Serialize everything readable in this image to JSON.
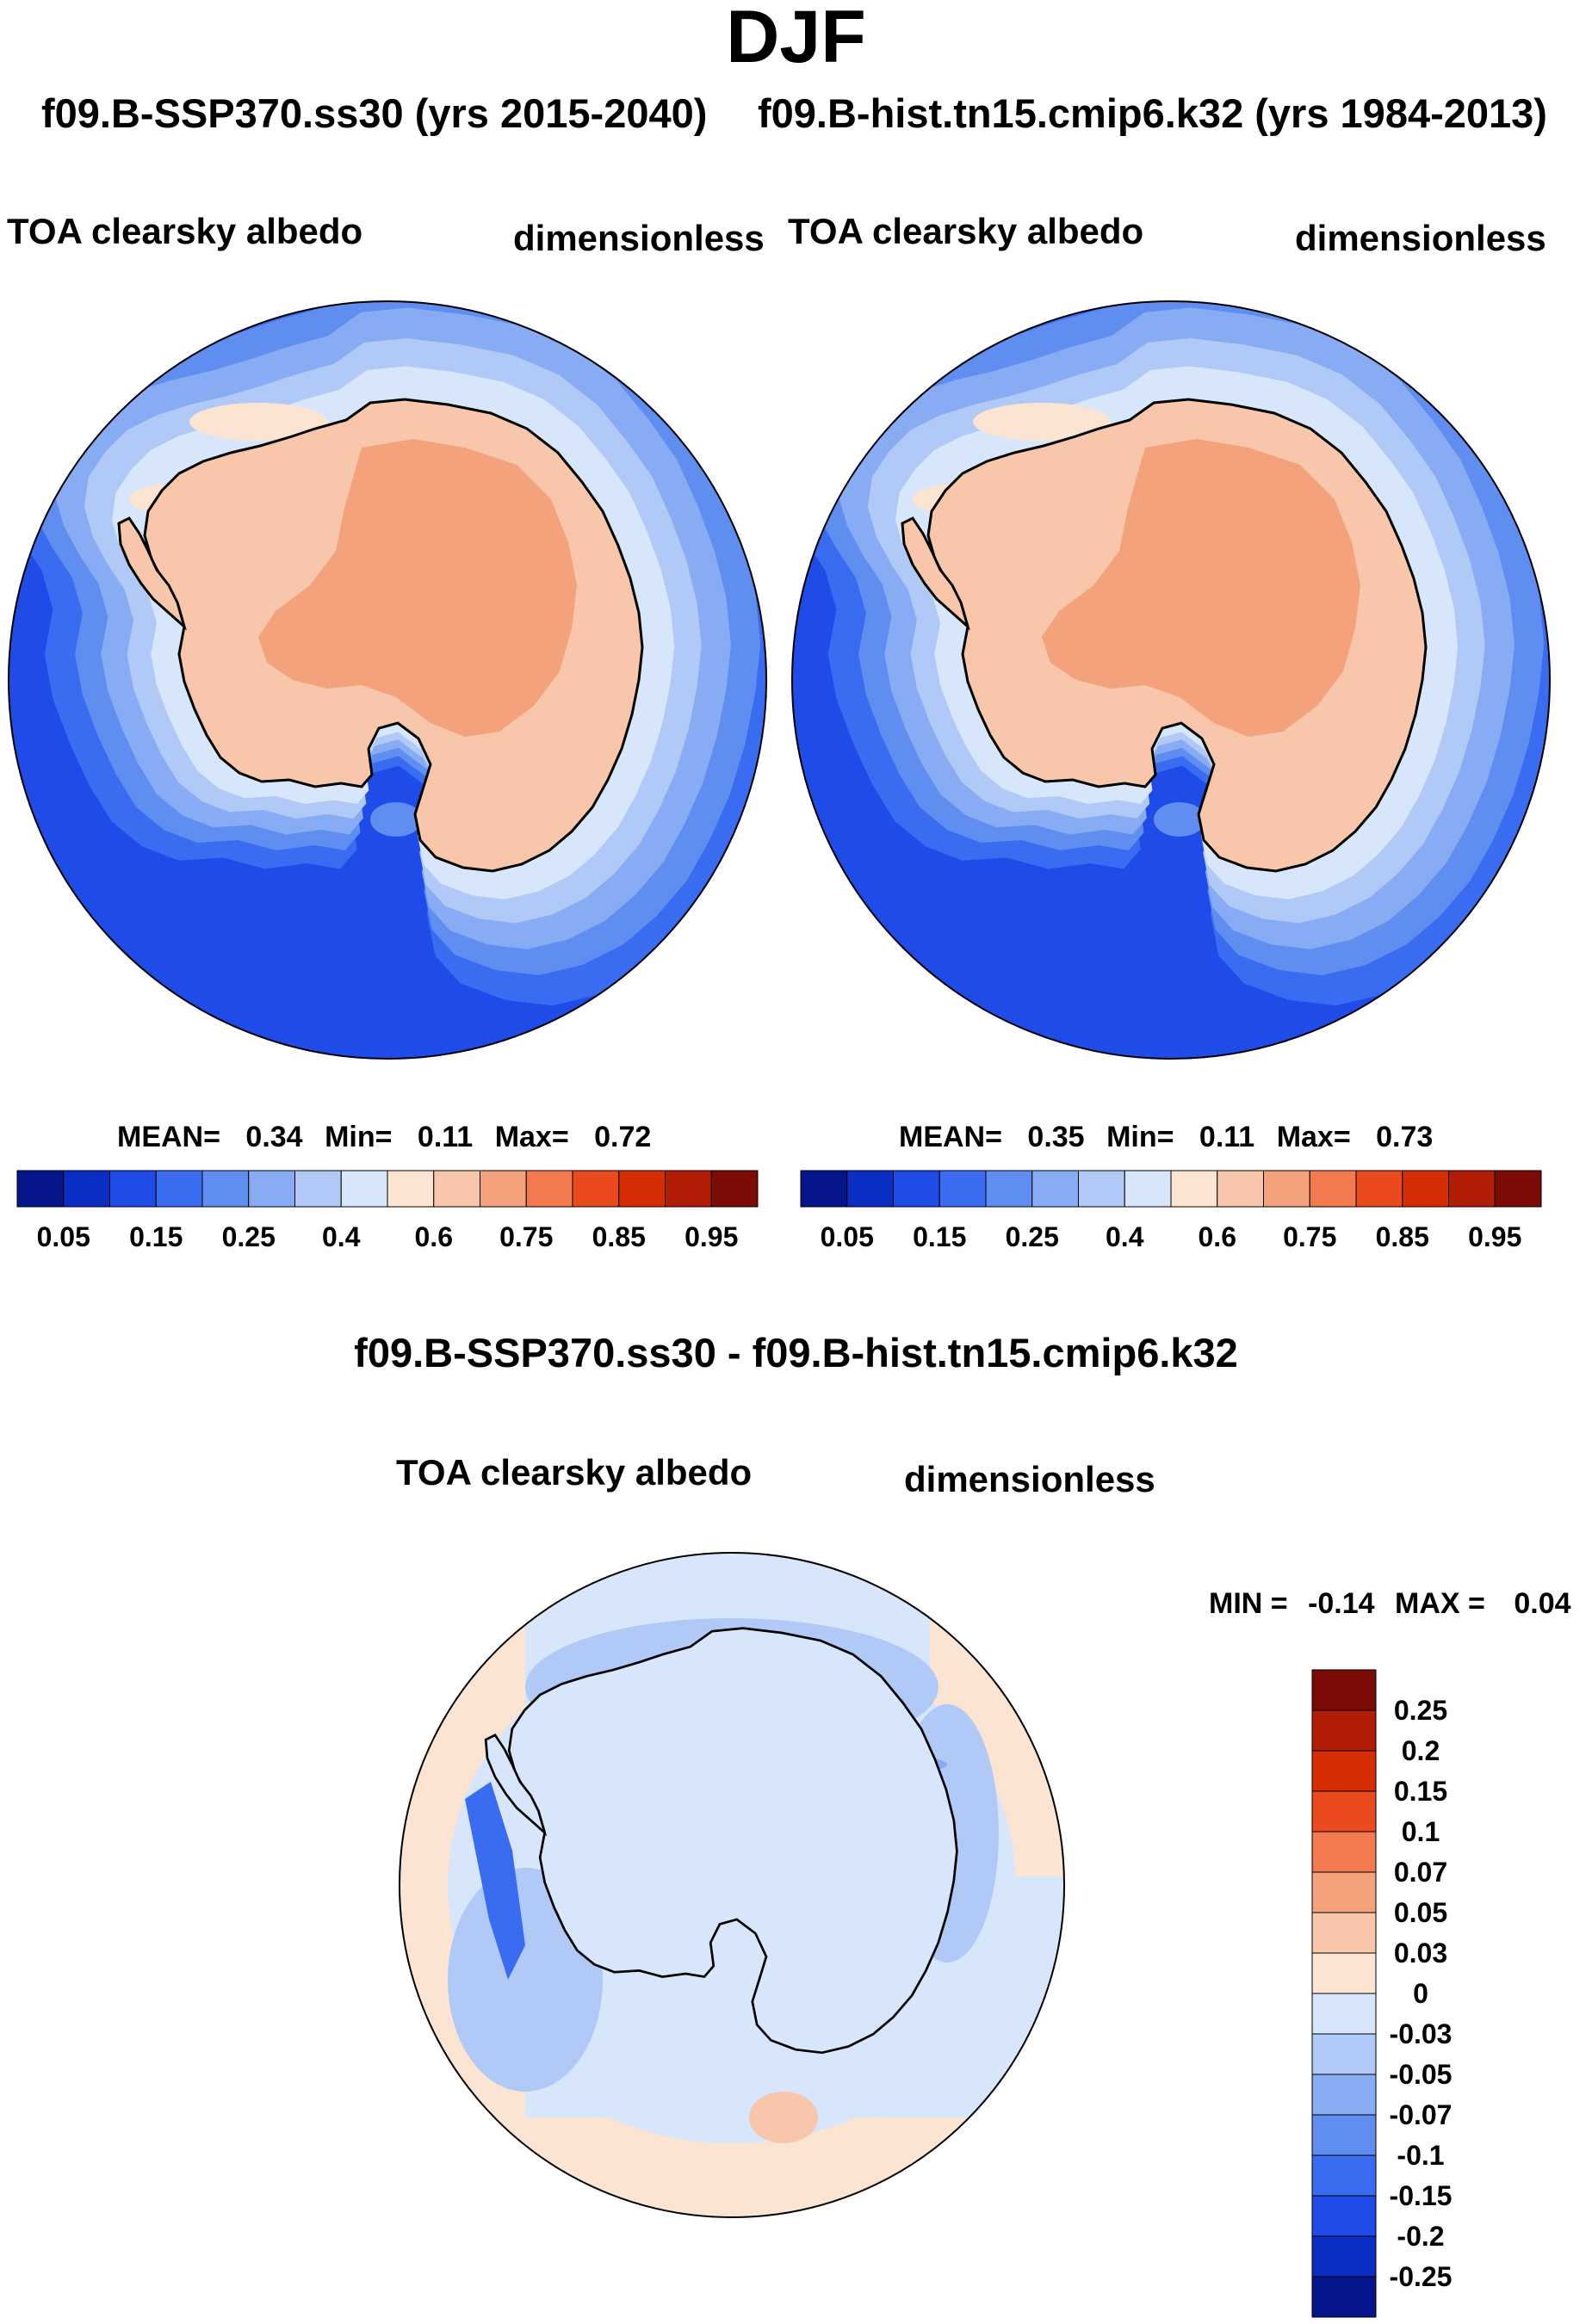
{
  "title": "DJF",
  "run_left": "f09.B-SSP370.ss30 (yrs 2015-2040)",
  "run_right": "f09.B-hist.tn15.cmip6.k32 (yrs 1984-2013)",
  "difference_title": "f09.B-SSP370.ss30 - f09.B-hist.tn15.cmip6.k32",
  "chart_data": [
    {
      "type": "heatmap",
      "projection": "south-polar-stereographic",
      "variable": "TOA clearsky albedo",
      "units": "dimensionless",
      "stats": {
        "mean_label": "MEAN=",
        "mean": "0.34",
        "min_label": "Min=",
        "min": "0.11",
        "max_label": "Max=",
        "max": "0.72"
      },
      "colorbar": {
        "orientation": "horizontal",
        "levels": [
          0.05,
          0.1,
          0.15,
          0.2,
          0.25,
          0.3,
          0.4,
          0.5,
          0.6,
          0.7,
          0.75,
          0.8,
          0.85,
          0.9,
          0.95
        ],
        "tick_labels": [
          "0.05",
          "0.15",
          "0.25",
          "0.4",
          "0.6",
          "0.75",
          "0.85",
          "0.95"
        ],
        "colors": [
          "#05158c",
          "#0a2ec4",
          "#1f4be8",
          "#3a6cf2",
          "#5f8ef0",
          "#87acf3",
          "#b0c9f7",
          "#d7e6fa",
          "#fbe4d2",
          "#f8c6aa",
          "#f4a27b",
          "#f27a4e",
          "#ea4a1e",
          "#d62d05",
          "#b21d06",
          "#7c0a05"
        ]
      }
    },
    {
      "type": "heatmap",
      "projection": "south-polar-stereographic",
      "variable": "TOA clearsky albedo",
      "units": "dimensionless",
      "stats": {
        "mean_label": "MEAN=",
        "mean": "0.35",
        "min_label": "Min=",
        "min": "0.11",
        "max_label": "Max=",
        "max": "0.73"
      },
      "colorbar": {
        "orientation": "horizontal",
        "levels": [
          0.05,
          0.1,
          0.15,
          0.2,
          0.25,
          0.3,
          0.4,
          0.5,
          0.6,
          0.7,
          0.75,
          0.8,
          0.85,
          0.9,
          0.95
        ],
        "tick_labels": [
          "0.05",
          "0.15",
          "0.25",
          "0.4",
          "0.6",
          "0.75",
          "0.85",
          "0.95"
        ],
        "colors": [
          "#05158c",
          "#0a2ec4",
          "#1f4be8",
          "#3a6cf2",
          "#5f8ef0",
          "#87acf3",
          "#b0c9f7",
          "#d7e6fa",
          "#fbe4d2",
          "#f8c6aa",
          "#f4a27b",
          "#f27a4e",
          "#ea4a1e",
          "#d62d05",
          "#b21d06",
          "#7c0a05"
        ]
      }
    },
    {
      "type": "heatmap",
      "projection": "south-polar-stereographic",
      "variable": "TOA clearsky albedo",
      "units": "dimensionless",
      "minmax": {
        "min_label": "MIN =",
        "min": "-0.14",
        "max_label": "MAX =",
        "max": "0.04"
      },
      "colorbar": {
        "orientation": "vertical",
        "tick_labels": [
          "0.25",
          "0.2",
          "0.15",
          "0.1",
          "0.07",
          "0.05",
          "0.03",
          "0",
          "-0.03",
          "-0.05",
          "-0.07",
          "-0.1",
          "-0.15",
          "-0.2",
          "-0.25"
        ],
        "colors": [
          "#7c0a05",
          "#b21d06",
          "#d62d05",
          "#ea4a1e",
          "#f27a4e",
          "#f4a27b",
          "#f8c6aa",
          "#fbe4d2",
          "#d7e6fa",
          "#b0c9f7",
          "#87acf3",
          "#5f8ef0",
          "#3a6cf2",
          "#1f4be8",
          "#0a2ec4",
          "#05158c"
        ]
      }
    }
  ],
  "map_colors": {
    "ocean": "#1f4be8",
    "ring1": "#3a6cf2",
    "ring2": "#5f8ef0",
    "ring3": "#87acf3",
    "ring4": "#b0c9f7",
    "ring5": "#d7e6fa",
    "continent": "#f8c6aa",
    "plateau": "#f4a27b",
    "coast_ice": "#fbe4d2",
    "diff_bg": "#d7e6fa",
    "diff_neg": "#b0c9f7",
    "diff_neg2": "#87acf3",
    "diff_neg3": "#3a6cf2",
    "diff_pos": "#fbe4d2",
    "diff_pos2": "#f8c6aa"
  }
}
